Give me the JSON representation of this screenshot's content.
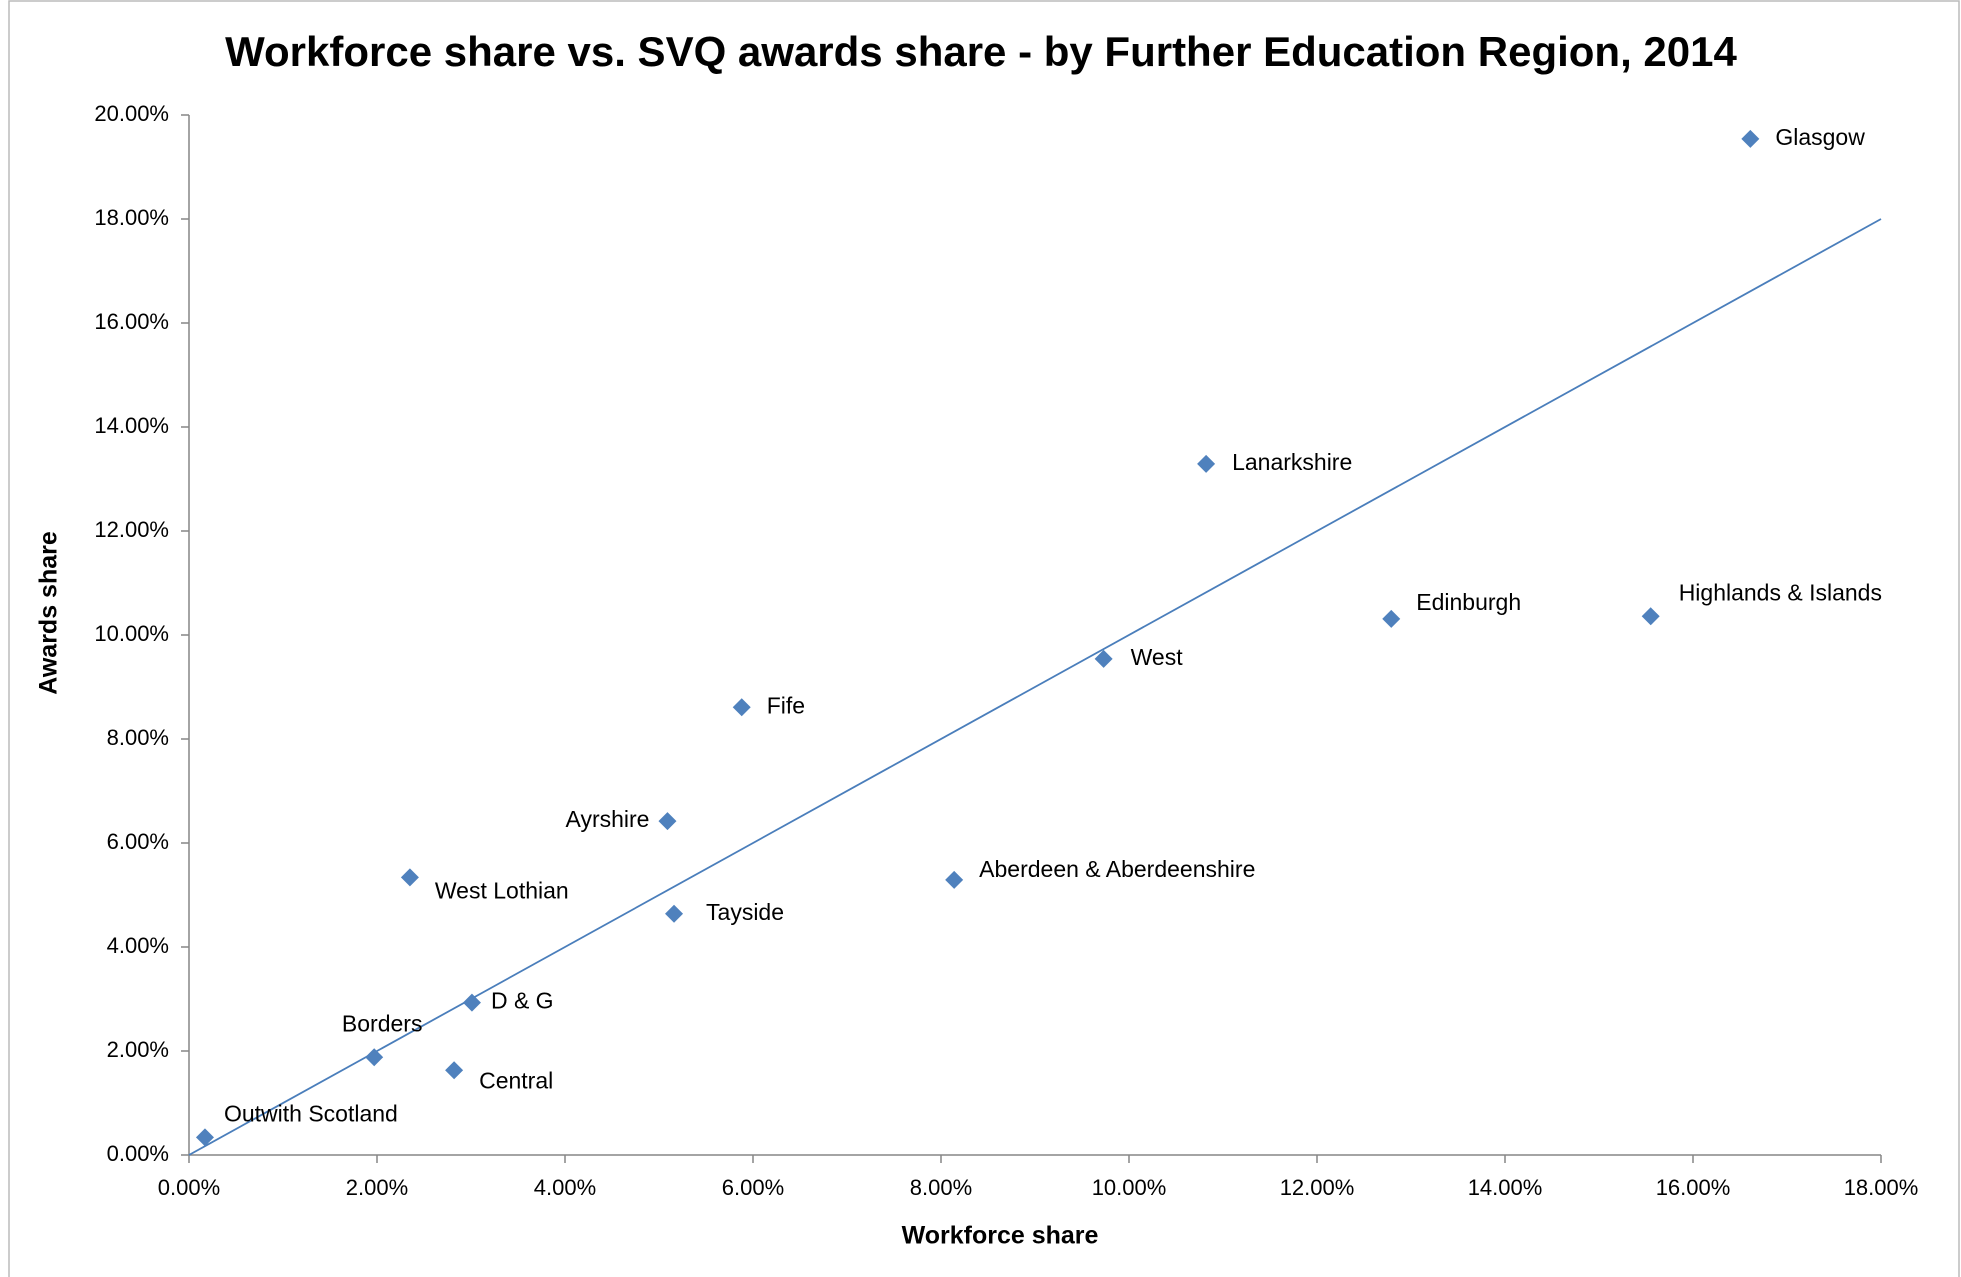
{
  "chart_data": {
    "type": "scatter",
    "title": "Workforce share vs. SVQ awards share - by Further Education Region, 2014",
    "x_label": "Workforce share",
    "y_label": "Awards share",
    "color": "#4f81bd",
    "labels": [
      "Glasgow",
      "Lanarkshire",
      "Edinburgh",
      "Highlands & Islands",
      "West",
      "Fife",
      "Ayrshire",
      "West Lothian",
      "Aberdeen & Aberdeenshire",
      "Tayside",
      "D & G",
      "Borders",
      "Central",
      "Outwith Scotland"
    ],
    "x": [
      16.61,
      10.82,
      12.79,
      15.55,
      9.73,
      5.88,
      5.09,
      2.35,
      8.14,
      5.16,
      3.01,
      1.97,
      2.82,
      0.17
    ],
    "values": [
      19.54,
      13.29,
      10.31,
      10.36,
      9.54,
      8.61,
      6.42,
      5.34,
      5.29,
      4.64,
      2.93,
      1.88,
      1.63,
      0.34
    ],
    "trend_line": {
      "color": "#4a7ebb",
      "x": [
        0,
        18
      ],
      "values": [
        0,
        18
      ]
    },
    "xlim": [
      0,
      18
    ],
    "ylim": [
      0,
      20
    ],
    "xticks": [
      {
        "value": 0,
        "label": "0.00%"
      },
      {
        "value": 2,
        "label": "2.00%"
      },
      {
        "value": 4,
        "label": "4.00%"
      },
      {
        "value": 6,
        "label": "6.00%"
      },
      {
        "value": 8,
        "label": "8.00%"
      },
      {
        "value": 10,
        "label": "10.00%"
      },
      {
        "value": 12,
        "label": "12.00%"
      },
      {
        "value": 14,
        "label": "14.00%"
      },
      {
        "value": 16,
        "label": "16.00%"
      },
      {
        "value": 18,
        "label": "18.00%"
      }
    ],
    "yticks": [
      {
        "value": 0,
        "label": "0.00%"
      },
      {
        "value": 2,
        "label": "2.00%"
      },
      {
        "value": 4,
        "label": "4.00%"
      },
      {
        "value": 6,
        "label": "6.00%"
      },
      {
        "value": 8,
        "label": "8.00%"
      },
      {
        "value": 10,
        "label": "10.00%"
      },
      {
        "value": 12,
        "label": "12.00%"
      },
      {
        "value": 14,
        "label": "14.00%"
      },
      {
        "value": 16,
        "label": "16.00%"
      },
      {
        "value": 18,
        "label": "18.00%"
      },
      {
        "value": 20,
        "label": "20.00%"
      }
    ],
    "grid": false
  }
}
